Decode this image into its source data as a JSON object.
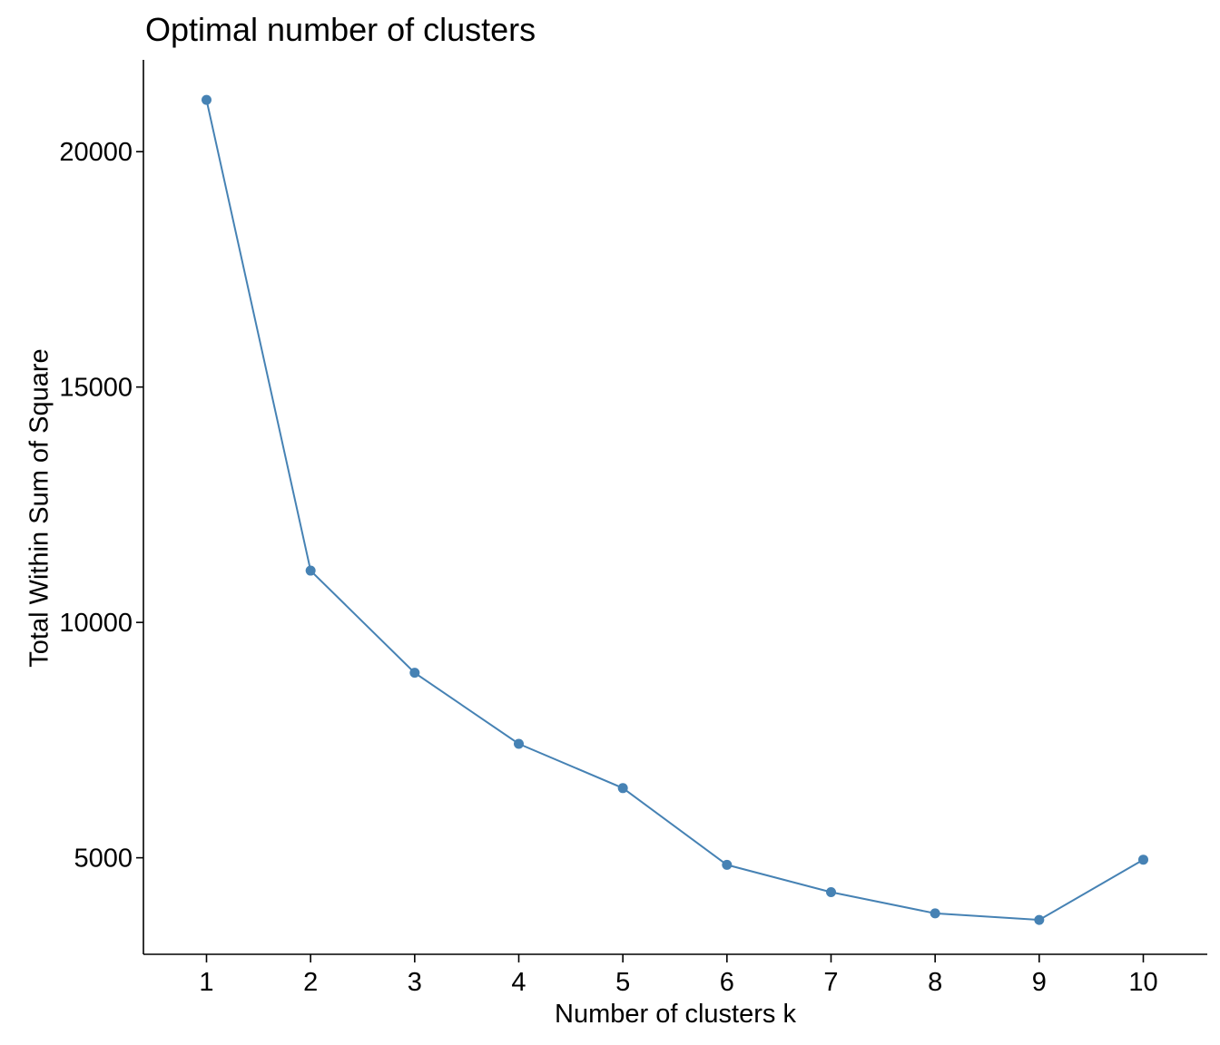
{
  "chart_data": {
    "type": "line",
    "title": "Optimal number of clusters",
    "xlabel": "Number of clusters k",
    "ylabel": "Total Within Sum of Square",
    "categories": [
      "1",
      "2",
      "3",
      "4",
      "5",
      "6",
      "7",
      "8",
      "9",
      "10"
    ],
    "series": [
      {
        "values": [
          21100,
          11100,
          8930,
          7420,
          6480,
          4850,
          4270,
          3820,
          3680,
          4960
        ]
      }
    ],
    "yticks": [
      "5000",
      "10000",
      "15000",
      "20000"
    ],
    "ylim": [
      2950,
      21950
    ],
    "grid": false,
    "legend": "none",
    "color": "#4682B4"
  }
}
